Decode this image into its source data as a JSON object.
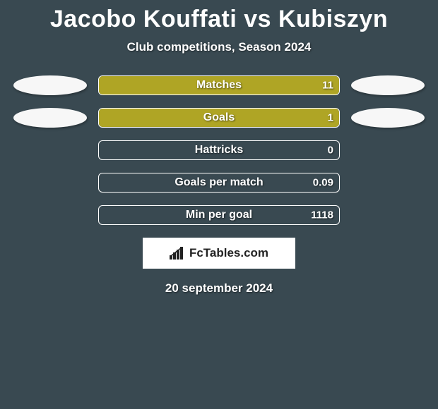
{
  "background_color": "#394951",
  "title": "Jacobo Kouffati vs Kubiszyn",
  "title_fontsize": 34,
  "title_color": "#ffffff",
  "subtitle": "Club competitions, Season 2024",
  "subtitle_fontsize": 17,
  "subtitle_color": "#ffffff",
  "stats": [
    {
      "label": "Matches",
      "value_left": "11",
      "fill_pct": 100,
      "fill_color": "#afa525",
      "show_profiles": true
    },
    {
      "label": "Goals",
      "value_left": "1",
      "fill_pct": 100,
      "fill_color": "#afa525",
      "show_profiles": true
    },
    {
      "label": "Hattricks",
      "value_left": "0",
      "fill_pct": 0,
      "fill_color": "#afa525",
      "show_profiles": false
    },
    {
      "label": "Goals per match",
      "value_left": "0.09",
      "fill_pct": 0,
      "fill_color": "#afa525",
      "show_profiles": false
    },
    {
      "label": "Min per goal",
      "value_left": "1118",
      "fill_pct": 0,
      "fill_color": "#afa525",
      "show_profiles": false
    }
  ],
  "bar": {
    "border_color": "#ffffff",
    "label_color": "#ffffff",
    "value_color": "#ffffff",
    "label_fontsize": 16,
    "value_fontsize": 15
  },
  "profile_placeholder_color": "#f7f7f7",
  "logo_text": "FcTables.com",
  "date": "20 september 2024"
}
